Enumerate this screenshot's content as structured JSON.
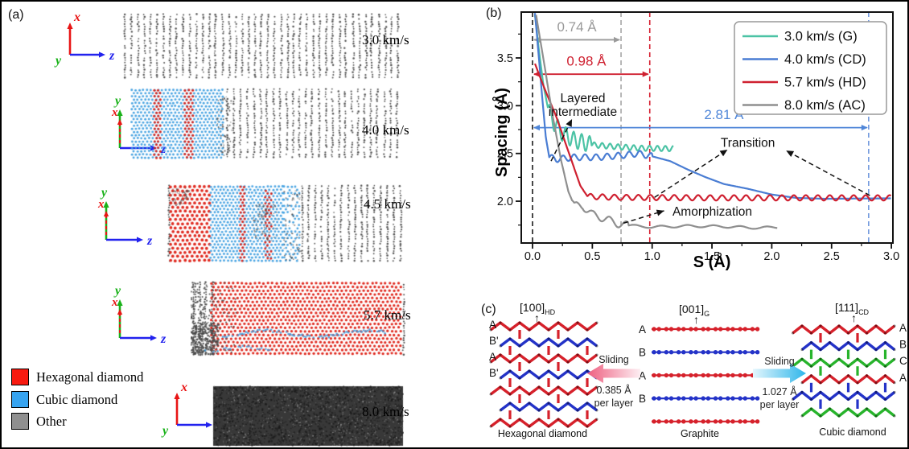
{
  "figure": {
    "panel_a_label": "(a)",
    "panel_b_label": "(b)",
    "panel_c_label": "(c)"
  },
  "panel_a": {
    "axis_labels": {
      "x": "x",
      "y": "y",
      "z": "z"
    },
    "rows": [
      {
        "velocity": "3.0 km/s"
      },
      {
        "velocity": "4.0 km/s"
      },
      {
        "velocity": "4.5 km/s"
      },
      {
        "velocity": "5.7 km/s"
      },
      {
        "velocity": "8.0 km/s"
      }
    ],
    "legend": [
      {
        "label": "Hexagonal diamond",
        "color": "#f81a10"
      },
      {
        "label": "Cubic diamond",
        "color": "#37a4f0"
      },
      {
        "label": "Other",
        "color": "#8f8f8f"
      }
    ],
    "atom_colors": {
      "hexagonal": "#de1f14",
      "cubic": "#3f9fe0",
      "graphite": "#424242",
      "amorphous": "#383838"
    }
  },
  "chart_data": {
    "type": "line",
    "title": "",
    "xlabel": "S (Å)",
    "ylabel": "Spacing (Å)",
    "xlim": [
      -0.09,
      3.0
    ],
    "ylim": [
      1.56,
      3.98
    ],
    "x_ticks": [
      "0.0",
      "0.5",
      "1.0",
      "1.5",
      "2.0",
      "2.5",
      "3.0"
    ],
    "y_ticks": [
      "2.0",
      "2.5",
      "3.0",
      "3.5"
    ],
    "x_minor_ticks": [
      0.25,
      0.75,
      1.25,
      1.75,
      2.25,
      2.75
    ],
    "y_minor_ticks": [
      1.75,
      2.25,
      2.75,
      3.25,
      3.75
    ],
    "grid": false,
    "legend_position": "top-right",
    "series": [
      {
        "name": "3.0 km/s  (G)",
        "color": "#4cc3a5",
        "base": [
          [
            0.02,
            3.95
          ],
          [
            0.05,
            3.62
          ],
          [
            0.09,
            3.22
          ],
          [
            0.13,
            2.97
          ],
          [
            0.18,
            2.82
          ],
          [
            0.25,
            2.71
          ],
          [
            0.35,
            2.64
          ],
          [
            0.5,
            2.59
          ],
          [
            0.7,
            2.57
          ],
          [
            0.9,
            2.555
          ],
          [
            1.18,
            2.55
          ]
        ],
        "osc": [
          {
            "x0": 0.13,
            "x1": 0.5,
            "amp": 0.085,
            "period": 0.066
          },
          {
            "x0": 0.5,
            "x1": 1.18,
            "amp": 0.028,
            "period": 0.066
          }
        ]
      },
      {
        "name": "4.0 km/s (CD)",
        "color": "#4a7dd3",
        "base": [
          [
            0.02,
            3.97
          ],
          [
            0.05,
            3.55
          ],
          [
            0.08,
            3.1
          ],
          [
            0.11,
            2.68
          ],
          [
            0.14,
            2.46
          ],
          [
            0.2,
            2.44
          ],
          [
            0.35,
            2.46
          ],
          [
            0.55,
            2.46
          ],
          [
            0.75,
            2.48
          ],
          [
            0.88,
            2.5
          ],
          [
            1.0,
            2.47
          ],
          [
            1.15,
            2.42
          ],
          [
            1.3,
            2.33
          ],
          [
            1.45,
            2.25
          ],
          [
            1.6,
            2.18
          ],
          [
            1.8,
            2.13
          ],
          [
            2.0,
            2.07
          ],
          [
            2.2,
            2.035
          ],
          [
            2.45,
            2.025
          ],
          [
            2.7,
            2.028
          ],
          [
            3.0,
            2.03
          ]
        ],
        "osc": [
          {
            "x0": 0.14,
            "x1": 1.0,
            "amp": 0.032,
            "period": 0.092
          }
        ]
      },
      {
        "name": "5.7 km/s (HD)",
        "color": "#cf2030",
        "base": [
          [
            0.02,
            3.44
          ],
          [
            0.1,
            3.18
          ],
          [
            0.2,
            2.88
          ],
          [
            0.3,
            2.52
          ],
          [
            0.4,
            2.16
          ],
          [
            0.46,
            2.05
          ],
          [
            0.7,
            2.04
          ],
          [
            1.5,
            2.035
          ],
          [
            3.0,
            2.035
          ]
        ],
        "osc": [
          {
            "x0": 0.46,
            "x1": 3.0,
            "amp": 0.028,
            "period": 0.1
          }
        ]
      },
      {
        "name": "8.0 km/s (AC)",
        "color": "#8f8f8f",
        "base": [
          [
            0.03,
            3.95
          ],
          [
            0.1,
            3.42
          ],
          [
            0.17,
            2.88
          ],
          [
            0.24,
            2.42
          ],
          [
            0.3,
            2.1
          ],
          [
            0.35,
            1.95
          ],
          [
            0.42,
            1.95
          ],
          [
            0.5,
            1.86
          ],
          [
            0.6,
            1.82
          ],
          [
            0.7,
            1.77
          ],
          [
            0.8,
            1.745
          ],
          [
            1.0,
            1.73
          ],
          [
            1.3,
            1.74
          ],
          [
            1.6,
            1.735
          ],
          [
            1.9,
            1.72
          ],
          [
            2.05,
            1.73
          ]
        ],
        "osc": [
          {
            "x0": 0.33,
            "x1": 0.8,
            "amp": 0.04,
            "period": 0.14
          },
          {
            "x0": 0.8,
            "x1": 2.05,
            "amp": 0.012,
            "period": 0.22
          }
        ]
      }
    ],
    "vlines": [
      {
        "x": 0.0,
        "color": "#1a1a1a"
      },
      {
        "x": 0.74,
        "color": "#a5a5a5"
      },
      {
        "x": 0.98,
        "color": "#d51f30"
      },
      {
        "x": 2.81,
        "color": "#6f97dd"
      }
    ],
    "measure_arrows": [
      {
        "label": "0.74 Å",
        "color": "#9a9a9a",
        "y": 3.69,
        "x0": 0.0,
        "x1": 0.74,
        "label_x": 0.37,
        "label_y": 3.82
      },
      {
        "label": "0.98 Å",
        "color": "#cf2030",
        "y": 3.33,
        "x0": 0.0,
        "x1": 0.98,
        "label_x": 0.45,
        "label_y": 3.46
      },
      {
        "label": "2.81 Å",
        "color": "#4f86d8",
        "y": 2.77,
        "x0": 0.0,
        "x1": 2.81,
        "label_x": 1.6,
        "label_y": 2.9
      }
    ],
    "annotations": [
      {
        "text": "Layered\nintermediate",
        "x": 0.42,
        "y": 3.08,
        "anchor": "middle"
      },
      {
        "text": "Transition",
        "x": 1.8,
        "y": 2.61,
        "anchor": "middle"
      },
      {
        "text": "Amorphization",
        "x": 1.17,
        "y": 1.89,
        "anchor": "start"
      }
    ],
    "dashed_arrows": [
      {
        "from": [
          0.155,
          2.42
        ],
        "to": [
          0.33,
          2.86
        ]
      },
      {
        "from": [
          1.02,
          2.04
        ],
        "to": [
          1.63,
          2.54
        ]
      },
      {
        "from": [
          2.82,
          2.06
        ],
        "to": [
          2.12,
          2.53
        ]
      },
      {
        "from": [
          0.76,
          1.77
        ],
        "to": [
          1.1,
          1.9
        ]
      }
    ]
  },
  "panel_c": {
    "structures": [
      {
        "direction": "[100]",
        "direction_sub": "HD",
        "caption": "Hexagonal diamond",
        "left_labels": [
          "A",
          "B'",
          "A",
          "B'"
        ],
        "right_labels": [],
        "layer_colors": [
          "#d6212b",
          "#2433c8"
        ]
      },
      {
        "direction": "[001]",
        "direction_sub": "G",
        "caption": "Graphite",
        "left_labels": [
          "A",
          "B",
          "A",
          "B"
        ],
        "right_labels": [],
        "layer_colors": [
          "#d6212b",
          "#2433c8",
          "#d6212b",
          "#2433c8",
          "#d6212b"
        ]
      },
      {
        "direction": "[111]",
        "direction_sub": "CD",
        "caption": "Cubic diamond",
        "left_labels": [],
        "right_labels": [
          "A",
          "B",
          "C",
          "A"
        ],
        "layer_colors": [
          "#d6212b",
          "#2433c8",
          "#28b42c"
        ]
      }
    ],
    "sliding_left": {
      "label": "Sliding",
      "amount": "0.385 Å",
      "per": "per layer",
      "arrow_color": "#ee5f80"
    },
    "sliding_right": {
      "label": "Sliding",
      "amount": "1.027 Å",
      "per": "per layer",
      "arrow_color": "#2fb6ea"
    }
  }
}
